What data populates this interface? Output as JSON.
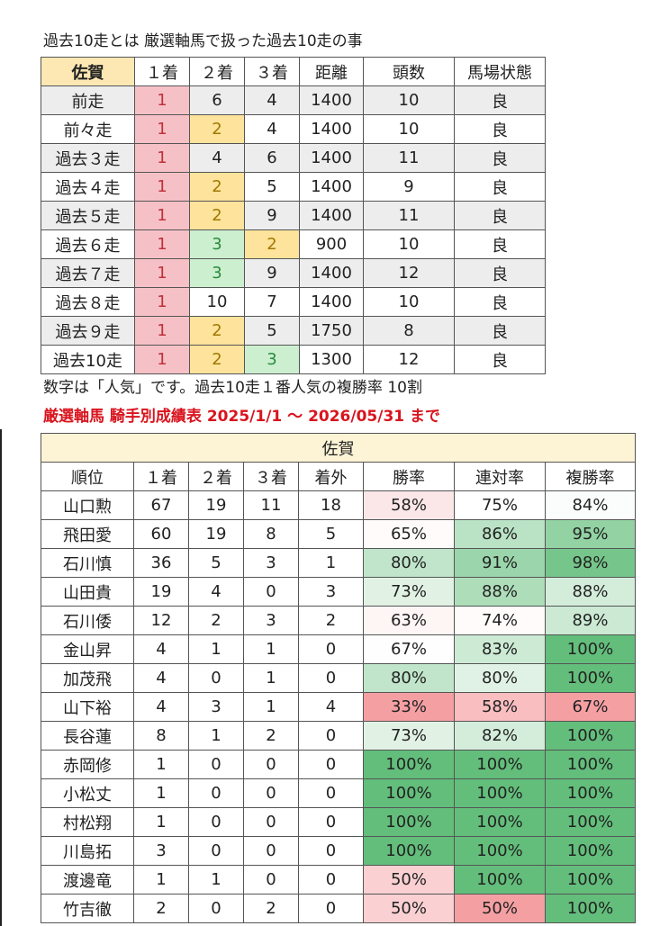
{
  "caption": "過去10走とは 厳選軸馬で扱った過去10走の事",
  "table1": {
    "corner": "佐賀",
    "headers": [
      "１着",
      "２着",
      "３着",
      "距離",
      "頭数",
      "馬場状態"
    ],
    "rows": [
      {
        "label": "前走",
        "c1": "1",
        "c2": "6",
        "c3": "4",
        "dist": "1400",
        "heads": "10",
        "track": "良"
      },
      {
        "label": "前々走",
        "c1": "1",
        "c2": "2",
        "c3": "4",
        "dist": "1400",
        "heads": "10",
        "track": "良"
      },
      {
        "label": "過去３走",
        "c1": "1",
        "c2": "4",
        "c3": "6",
        "dist": "1400",
        "heads": "11",
        "track": "良"
      },
      {
        "label": "過去４走",
        "c1": "1",
        "c2": "2",
        "c3": "5",
        "dist": "1400",
        "heads": "9",
        "track": "良"
      },
      {
        "label": "過去５走",
        "c1": "1",
        "c2": "2",
        "c3": "9",
        "dist": "1400",
        "heads": "11",
        "track": "良"
      },
      {
        "label": "過去６走",
        "c1": "1",
        "c2": "3",
        "c3": "2",
        "dist": "900",
        "heads": "10",
        "track": "良"
      },
      {
        "label": "過去７走",
        "c1": "1",
        "c2": "3",
        "c3": "9",
        "dist": "1400",
        "heads": "12",
        "track": "良"
      },
      {
        "label": "過去８走",
        "c1": "1",
        "c2": "10",
        "c3": "7",
        "dist": "1400",
        "heads": "10",
        "track": "良"
      },
      {
        "label": "過去９走",
        "c1": "1",
        "c2": "2",
        "c3": "5",
        "dist": "1750",
        "heads": "8",
        "track": "良"
      },
      {
        "label": "過去10走",
        "c1": "1",
        "c2": "2",
        "c3": "3",
        "dist": "1300",
        "heads": "12",
        "track": "良"
      }
    ]
  },
  "note": "数字は「人気」です。過去10走１番人気の複勝率 10割",
  "table2_title": "厳選軸馬 騎手別成績表 2025/1/1 ～ 2026/05/31 まで",
  "table2": {
    "region": "佐賀",
    "headers": [
      "順位",
      "１着",
      "２着",
      "３着",
      "着外",
      "勝率",
      "連対率",
      "複勝率"
    ],
    "rows": [
      {
        "name": "山口勲",
        "w1": "67",
        "w2": "19",
        "w3": "11",
        "out": "18",
        "win_rate": "58%",
        "quinella_rate": "75%",
        "show_rate": "84%",
        "win_pct": 58,
        "quinella_pct": 75,
        "show_pct": 84
      },
      {
        "name": "飛田愛",
        "w1": "60",
        "w2": "19",
        "w3": "8",
        "out": "5",
        "win_rate": "65%",
        "quinella_rate": "86%",
        "show_rate": "95%",
        "win_pct": 65,
        "quinella_pct": 86,
        "show_pct": 95
      },
      {
        "name": "石川慎",
        "w1": "36",
        "w2": "5",
        "w3": "3",
        "out": "1",
        "win_rate": "80%",
        "quinella_rate": "91%",
        "show_rate": "98%",
        "win_pct": 80,
        "quinella_pct": 91,
        "show_pct": 98
      },
      {
        "name": "山田貴",
        "w1": "19",
        "w2": "4",
        "w3": "0",
        "out": "3",
        "win_rate": "73%",
        "quinella_rate": "88%",
        "show_rate": "88%",
        "win_pct": 73,
        "quinella_pct": 88,
        "show_pct": 88
      },
      {
        "name": "石川倭",
        "w1": "12",
        "w2": "2",
        "w3": "3",
        "out": "2",
        "win_rate": "63%",
        "quinella_rate": "74%",
        "show_rate": "89%",
        "win_pct": 63,
        "quinella_pct": 74,
        "show_pct": 89
      },
      {
        "name": "金山昇",
        "w1": "4",
        "w2": "1",
        "w3": "1",
        "out": "0",
        "win_rate": "67%",
        "quinella_rate": "83%",
        "show_rate": "100%",
        "win_pct": 67,
        "quinella_pct": 83,
        "show_pct": 100
      },
      {
        "name": "加茂飛",
        "w1": "4",
        "w2": "0",
        "w3": "1",
        "out": "0",
        "win_rate": "80%",
        "quinella_rate": "80%",
        "show_rate": "100%",
        "win_pct": 80,
        "quinella_pct": 80,
        "show_pct": 100
      },
      {
        "name": "山下裕",
        "w1": "4",
        "w2": "3",
        "w3": "1",
        "out": "4",
        "win_rate": "33%",
        "quinella_rate": "58%",
        "show_rate": "67%",
        "win_pct": 33,
        "quinella_pct": 58,
        "show_pct": 67
      },
      {
        "name": "長谷蓮",
        "w1": "8",
        "w2": "1",
        "w3": "2",
        "out": "0",
        "win_rate": "73%",
        "quinella_rate": "82%",
        "show_rate": "100%",
        "win_pct": 73,
        "quinella_pct": 82,
        "show_pct": 100
      },
      {
        "name": "赤岡修",
        "w1": "1",
        "w2": "0",
        "w3": "0",
        "out": "0",
        "win_rate": "100%",
        "quinella_rate": "100%",
        "show_rate": "100%",
        "win_pct": 100,
        "quinella_pct": 100,
        "show_pct": 100
      },
      {
        "name": "小松丈",
        "w1": "1",
        "w2": "0",
        "w3": "0",
        "out": "0",
        "win_rate": "100%",
        "quinella_rate": "100%",
        "show_rate": "100%",
        "win_pct": 100,
        "quinella_pct": 100,
        "show_pct": 100
      },
      {
        "name": "村松翔",
        "w1": "1",
        "w2": "0",
        "w3": "0",
        "out": "0",
        "win_rate": "100%",
        "quinella_rate": "100%",
        "show_rate": "100%",
        "win_pct": 100,
        "quinella_pct": 100,
        "show_pct": 100
      },
      {
        "name": "川島拓",
        "w1": "3",
        "w2": "0",
        "w3": "0",
        "out": "0",
        "win_rate": "100%",
        "quinella_rate": "100%",
        "show_rate": "100%",
        "win_pct": 100,
        "quinella_pct": 100,
        "show_pct": 100
      },
      {
        "name": "渡邊竜",
        "w1": "1",
        "w2": "1",
        "w3": "0",
        "out": "0",
        "win_rate": "50%",
        "quinella_rate": "100%",
        "show_rate": "100%",
        "win_pct": 50,
        "quinella_pct": 100,
        "show_pct": 100
      },
      {
        "name": "竹吉徹",
        "w1": "2",
        "w2": "0",
        "w3": "2",
        "out": "0",
        "win_rate": "50%",
        "quinella_rate": "50%",
        "show_rate": "100%",
        "win_pct": 50,
        "quinella_pct": 50,
        "show_pct": 100
      }
    ]
  },
  "colors": {
    "highlight_1": "#f6c1c6",
    "highlight_2": "#fde39b",
    "highlight_3": "#cbefcf",
    "title_red": "#d9141e",
    "scale_low": "#f4a0a3",
    "scale_mid": "#ffffff",
    "scale_high": "#63be7b"
  }
}
